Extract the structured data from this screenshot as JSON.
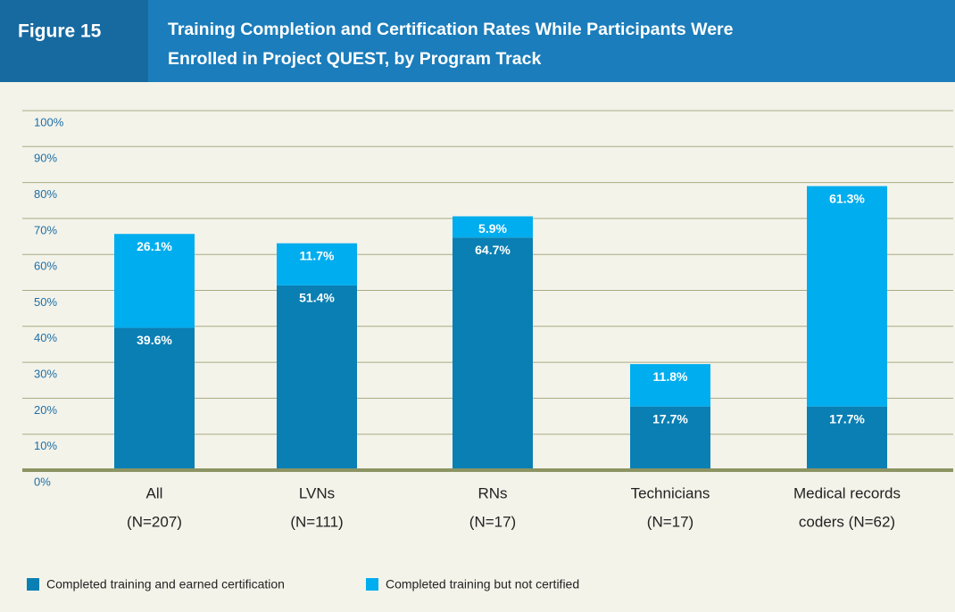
{
  "chart_data": {
    "type": "stacked_bar",
    "figure_label": "Figure 15",
    "title": [
      "Training Completion and Certification Rates While Participants Were",
      "Enrolled in Project QUEST, by Program Track"
    ],
    "categories": [
      [
        "All",
        "(N=207)"
      ],
      [
        "LVNs",
        "(N=111)"
      ],
      [
        "RNs",
        "(N=17)"
      ],
      [
        "Technicians",
        "(N=17)"
      ],
      [
        "Medical records",
        "coders (N=62)"
      ]
    ],
    "series": [
      {
        "name": "Completed training and earned certification",
        "color": "#0a7fb3",
        "values": [
          39.6,
          51.4,
          64.7,
          17.7,
          17.7
        ],
        "value_labels": [
          "39.6%",
          "51.4%",
          "64.7%",
          "17.7%",
          "17.7%"
        ]
      },
      {
        "name": "Completed training but not certified",
        "color": "#00adee",
        "values": [
          26.1,
          11.7,
          5.9,
          11.8,
          61.3
        ],
        "value_labels": [
          "26.1%",
          "11.7%",
          "5.9%",
          "11.8%",
          "61.3%"
        ]
      }
    ],
    "ylim": [
      0,
      100
    ],
    "yticks": [
      {
        "value": 0,
        "label": "0%"
      },
      {
        "value": 10,
        "label": "10%"
      },
      {
        "value": 20,
        "label": "20%"
      },
      {
        "value": 30,
        "label": "30%"
      },
      {
        "value": 40,
        "label": "40%"
      },
      {
        "value": 50,
        "label": "50%"
      },
      {
        "value": 60,
        "label": "60%"
      },
      {
        "value": 70,
        "label": "70%"
      },
      {
        "value": 80,
        "label": "80%"
      },
      {
        "value": 90,
        "label": "90%"
      },
      {
        "value": 100,
        "label": "100%"
      }
    ],
    "grid": true
  }
}
